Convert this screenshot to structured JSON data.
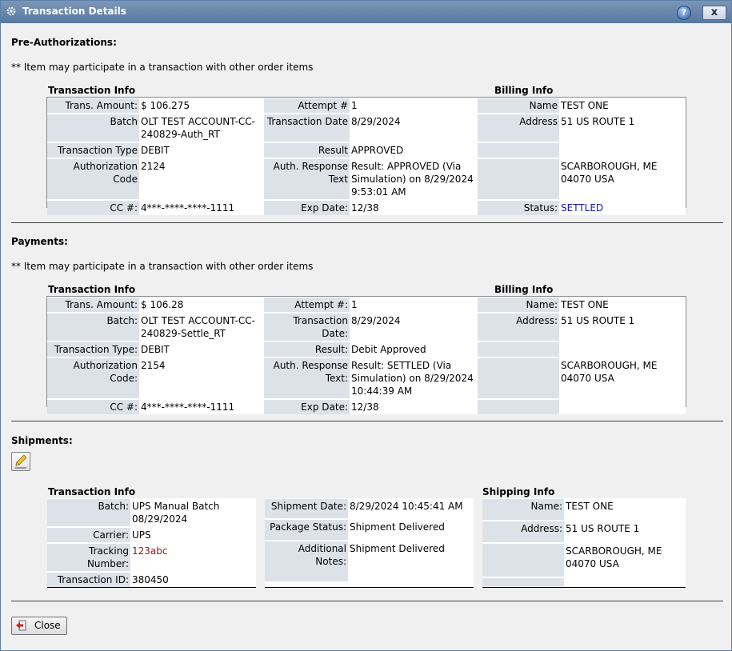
{
  "window": {
    "title": "Transaction Details",
    "help_label": "?",
    "close_label": "x"
  },
  "preauth": {
    "heading": "Pre-Authorizations:",
    "note": "** Item may participate in a transaction with other order items",
    "transaction_info_heading": "Transaction Info",
    "billing_info_heading": "Billing Info",
    "labels": {
      "trans_amount": "Trans. Amount:",
      "batch": "Batch",
      "transaction_type": "Transaction Type",
      "authorization_code": "Authorization Code",
      "cc": "CC #:",
      "attempt": "Attempt #",
      "transaction_date": "Transaction Date",
      "result": "Result",
      "auth_response": "Auth. Response Text",
      "exp_date": "Exp Date:",
      "name": "Name",
      "address": "Address",
      "status": "Status:"
    },
    "values": {
      "trans_amount": "$ 106.275",
      "batch": "OLT TEST ACCOUNT-CC-240829-Auth_RT",
      "transaction_type": "DEBIT",
      "authorization_code": "2124",
      "cc": "4***-****-****-1111",
      "attempt": "1",
      "transaction_date": "8/29/2024",
      "result": "APPROVED",
      "auth_response": "Result: APPROVED (Via Simulation) on 8/29/2024 9:53:01 AM",
      "exp_date": "12/38",
      "name": "TEST ONE",
      "address1": "51 US ROUTE 1",
      "address2": "SCARBOROUGH, ME 04070 USA",
      "status": "SETTLED"
    }
  },
  "payments": {
    "heading": "Payments:",
    "note": "** Item may participate in a transaction with other order items",
    "transaction_info_heading": "Transaction Info",
    "billing_info_heading": "Billing Info",
    "labels": {
      "trans_amount": "Trans. Amount:",
      "batch": "Batch:",
      "transaction_type": "Transaction Type:",
      "authorization_code": "Authorization Code:",
      "cc": "CC #:",
      "attempt": "Attempt #:",
      "transaction_date": "Transaction Date:",
      "result": "Result:",
      "auth_response": "Auth. Response Text:",
      "exp_date": "Exp Date:",
      "name": "Name:",
      "address": "Address:"
    },
    "values": {
      "trans_amount": "$ 106.28",
      "batch": "OLT TEST ACCOUNT-CC-240829-Settle_RT",
      "transaction_type": "DEBIT",
      "authorization_code": "2154",
      "cc": "4***-****-****-1111",
      "attempt": "1",
      "transaction_date": "8/29/2024",
      "result": "Debit Approved",
      "auth_response": "Result: SETTLED (Via Simulation) on 8/29/2024 10:44:39 AM",
      "exp_date": "12/38",
      "name": "TEST ONE",
      "address1": "51 US ROUTE 1",
      "address2": "SCARBOROUGH, ME 04070 USA"
    }
  },
  "shipments": {
    "heading": "Shipments:",
    "transaction_info_heading": "Transaction Info",
    "shipping_info_heading": "Shipping Info",
    "labels": {
      "batch": "Batch:",
      "carrier": "Carrier:",
      "tracking_number": "Tracking Number:",
      "transaction_id": "Transaction ID:",
      "shipment_date": "Shipment Date:",
      "package_status": "Package Status:",
      "additional_notes": "Additional Notes:",
      "name": "Name:",
      "address": "Address:"
    },
    "values": {
      "batch": "UPS Manual Batch 08/29/2024",
      "carrier": "UPS",
      "tracking_number": "123abc",
      "transaction_id": "380450",
      "shipment_date": "8/29/2024 10:45:41 AM",
      "package_status": "Shipment Delivered",
      "additional_notes": "Shipment Delivered",
      "name": "TEST  ONE",
      "address1": "51 US ROUTE 1",
      "address2": "SCARBOROUGH, ME 04070  USA"
    }
  },
  "footer": {
    "close_label": "Close"
  },
  "colors": {
    "link": "#1a1ab4",
    "tracking": "#8b1a1a",
    "title_bar": "#6886ab"
  }
}
